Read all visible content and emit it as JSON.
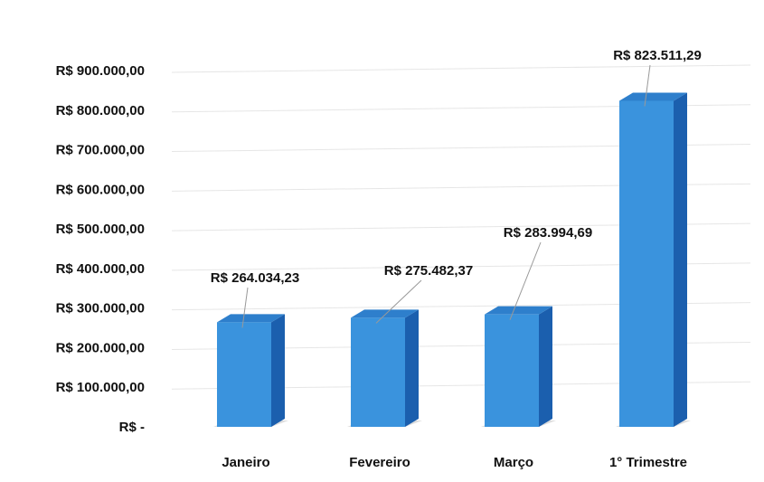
{
  "chart_data": {
    "type": "bar",
    "style": "3d-column",
    "categories": [
      "Janeiro",
      "Fevereiro",
      "Março",
      "1° Trimestre"
    ],
    "values": [
      264034.23,
      275482.37,
      283994.69,
      823511.29
    ],
    "data_labels": [
      "R$ 264.034,23",
      "R$ 275.482,37",
      "R$ 283.994,69",
      "R$ 823.511,29"
    ],
    "ytick_labels": [
      "R$ -",
      "R$ 100.000,00",
      "R$ 200.000,00",
      "R$ 300.000,00",
      "R$ 400.000,00",
      "R$ 500.000,00",
      "R$ 600.000,00",
      "R$ 700.000,00",
      "R$ 800.000,00",
      "R$ 900.000,00"
    ],
    "ytick_values": [
      0,
      100000,
      200000,
      300000,
      400000,
      500000,
      600000,
      700000,
      800000,
      900000
    ],
    "ylim": [
      0,
      900000
    ],
    "grid": true,
    "legend": "none",
    "colors": {
      "bar_front": "#3a93dd",
      "bar_side": "#1b5fae",
      "bar_top": "#2e7fcc",
      "grid": "#e6e6e6",
      "leader": "#999999",
      "shadow": "#cfcfcf"
    }
  }
}
